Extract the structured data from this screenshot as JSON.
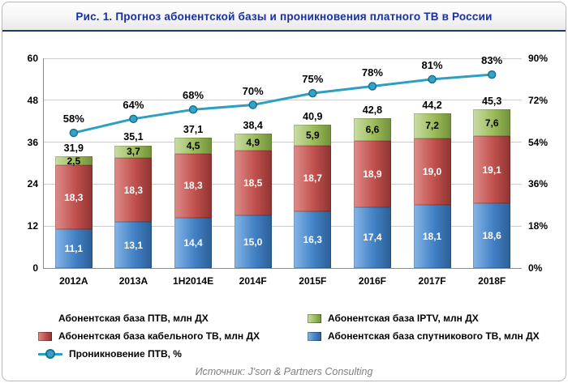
{
  "header": {
    "title": "Рис. 1. Прогноз абонентской базы и проникновения платного ТВ в России"
  },
  "source": "Источник: J'son & Partners Consulting",
  "chart_data": {
    "type": "bar",
    "subtype": "stacked-bars-with-line-overlay",
    "title": "Рис. 1. Прогноз абонентской базы и проникновения платного ТВ в России",
    "categories": [
      "2012A",
      "2013A",
      "1H2014E",
      "2014F",
      "2015F",
      "2016F",
      "2017F",
      "2018F"
    ],
    "series": [
      {
        "name": "Абонентская база спутникового ТВ, млн ДХ",
        "color": "#4180c4",
        "values": [
          11.1,
          13.1,
          14.4,
          15.0,
          16.3,
          17.4,
          18.1,
          18.6
        ],
        "labels": [
          "11,1",
          "13,1",
          "14,4",
          "15,0",
          "16,3",
          "17,4",
          "18,1",
          "18,6"
        ]
      },
      {
        "name": "Абонентская база кабельного ТВ, млн ДХ",
        "color": "#c0504d",
        "values": [
          18.3,
          18.3,
          18.3,
          18.5,
          18.7,
          18.9,
          19.0,
          19.1
        ],
        "labels": [
          "18,3",
          "18,3",
          "18,3",
          "18,5",
          "18,7",
          "18,9",
          "19,0",
          "19,1"
        ]
      },
      {
        "name": "Абонентская база IPTV, млн ДХ",
        "color": "#9bbb59",
        "values": [
          2.5,
          3.7,
          4.5,
          4.9,
          5.9,
          6.6,
          7.2,
          7.6
        ],
        "labels": [
          "2,5",
          "3,7",
          "4,5",
          "4,9",
          "5,9",
          "6,6",
          "7,2",
          "7,6"
        ]
      }
    ],
    "totals": [
      "31,9",
      "35,1",
      "37,1",
      "38,4",
      "40,9",
      "42,8",
      "44,2",
      "45,3"
    ],
    "line": {
      "name": "Проникновение ПТВ, %",
      "color": "#2e9fc4",
      "values": [
        58,
        64,
        68,
        70,
        75,
        78,
        81,
        83
      ],
      "labels": [
        "58%",
        "64%",
        "68%",
        "70%",
        "75%",
        "78%",
        "81%",
        "83%"
      ]
    },
    "left_axis": {
      "min": 0,
      "max": 60,
      "ticks": [
        "0",
        "12",
        "24",
        "36",
        "48",
        "60"
      ]
    },
    "right_axis": {
      "min": 0,
      "max": 90,
      "ticks": [
        "0%",
        "18%",
        "36%",
        "54%",
        "72%",
        "90%"
      ]
    },
    "grid": true,
    "legend_position": "bottom",
    "legend": [
      {
        "label": "Абонентская база ПТВ, млн ДХ",
        "swatch": "none"
      },
      {
        "label": "Абонентская база IPTV, млн ДХ",
        "swatch": "green"
      },
      {
        "label": "Абонентская база кабельного ТВ, млн ДХ",
        "swatch": "red"
      },
      {
        "label": "Абонентская база спутникового ТВ, млн ДХ",
        "swatch": "blue"
      },
      {
        "label": "Проникновение ПТВ, %",
        "swatch": "line"
      }
    ]
  }
}
